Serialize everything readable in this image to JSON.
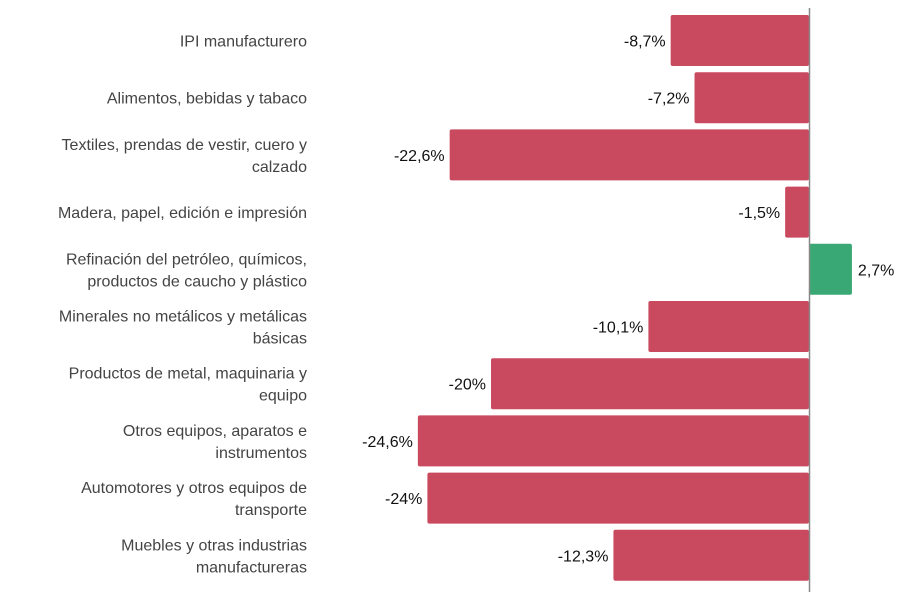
{
  "chart_data": {
    "type": "bar",
    "orientation": "horizontal",
    "title": "",
    "xlabel": "",
    "ylabel": "",
    "categories": [
      [
        "IPI manufacturero"
      ],
      [
        "Alimentos, bebidas y tabaco"
      ],
      [
        "Textiles, prendas de vestir, cuero y",
        "calzado"
      ],
      [
        "Madera, papel, edición e impresión"
      ],
      [
        "Refinación del petróleo, químicos,",
        "productos de caucho y plástico"
      ],
      [
        "Minerales no metálicos y metálicas",
        "básicas"
      ],
      [
        "Productos de metal, maquinaria y",
        "equipo"
      ],
      [
        "Otros equipos, aparatos e",
        "instrumentos"
      ],
      [
        "Automotores y otros equipos de",
        "transporte"
      ],
      [
        "Muebles y otras industrias",
        "manufactureras"
      ]
    ],
    "values": [
      -8.7,
      -7.2,
      -22.6,
      -1.5,
      2.7,
      -10.1,
      -20,
      -24.6,
      -24,
      -12.3
    ],
    "labels": [
      "-8,7%",
      "-7,2%",
      "-22,6%",
      "-1,5%",
      "2,7%",
      "-10,1%",
      "-20%",
      "-24,6%",
      "-24%",
      "-12,3%"
    ],
    "colors": {
      "negative": "#c9495e",
      "positive": "#3aa874",
      "axis": "#888888"
    }
  }
}
